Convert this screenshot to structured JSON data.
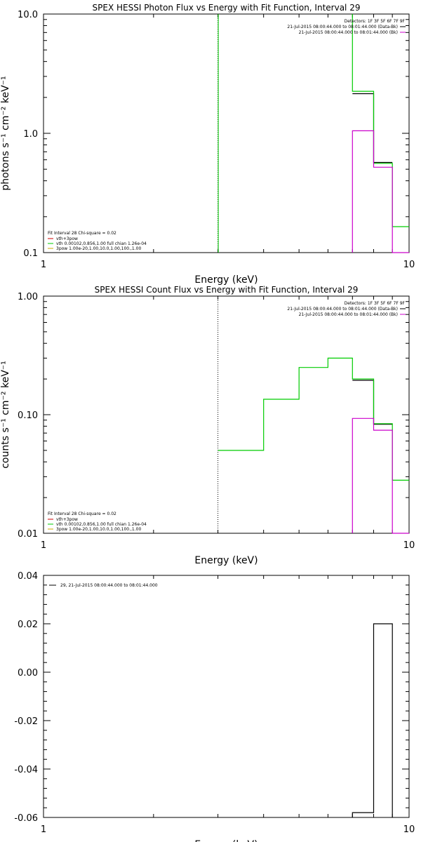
{
  "chart_data": [
    {
      "type": "line",
      "title": "SPEX HESSI Photon Flux vs Energy with Fit Function, Interval 29",
      "xlabel": "Energy (keV)",
      "ylabel": "photons s⁻¹ cm⁻² keV⁻¹",
      "xscale": "log",
      "yscale": "log",
      "xlim": [
        1,
        10
      ],
      "ylim": [
        0.1,
        10
      ],
      "xticks": [
        "1",
        "10"
      ],
      "yticks": [
        "0.1",
        "1.0",
        "10.0"
      ],
      "vline_x": 3,
      "legend": {
        "placement": "top-right",
        "header": "Detectors: 1F 3F 5F 6F 7F 9F",
        "lines": [
          "21-Jul-2015 08:00:44.000 to 08:01:44.000 (Data-Bk)",
          "21-Jul-2015 08:00:44.000 to 08:01:44.000 (Bk)"
        ]
      },
      "fit_legend": {
        "placement": "bottom-left",
        "header": "Fit Interval 28   Chi-square = 0.02",
        "lines": [
          "vth+3pow",
          "vth 0.00102,0.856,1.00  full chian 1.26e-04",
          "3pow 1.00e-20,1.00,10.0,1.00,100.,1.00"
        ]
      },
      "series": [
        {
          "color": "#000000",
          "edges": [
            7,
            8,
            9
          ],
          "values": [
            2.15,
            0.57
          ]
        },
        {
          "color": "#00cc00",
          "edges": [
            7,
            8,
            9,
            10
          ],
          "values": [
            2.25,
            0.56,
            0.165
          ],
          "rise_to": 10
        },
        {
          "color": "#cc00cc",
          "edges": [
            7,
            8,
            9,
            10
          ],
          "values": [
            1.05,
            0.52,
            0.1
          ],
          "drop": true
        }
      ]
    },
    {
      "type": "line",
      "title": "SPEX HESSI Count Flux vs Energy with Fit Function, Interval 29",
      "xlabel": "Energy (keV)",
      "ylabel": "counts s⁻¹ cm⁻² keV⁻¹",
      "xscale": "log",
      "yscale": "log",
      "xlim": [
        1,
        10
      ],
      "ylim": [
        0.01,
        1
      ],
      "xticks": [
        "1",
        "10"
      ],
      "yticks": [
        "0.01",
        "0.10",
        "1.00"
      ],
      "vline_x": 3,
      "legend": {
        "placement": "top-right",
        "header": "Detectors: 1F 3F 5F 6F 7F 9F",
        "lines": [
          "21-Jul-2015 08:00:44.000 to 08:01:44.000 (Data-Bk)",
          "21-Jul-2015 08:00:44.000 to 08:01:44.000 (Bk)"
        ]
      },
      "fit_legend": {
        "placement": "bottom-left",
        "header": "Fit Interval 28   Chi-square = 0.02",
        "lines": [
          "vth+3pow",
          "vth 0.00102,0.856,1.00  full chian 1.26e-04",
          "3pow 1.00e-20,1.00,10.0,1.00,100.,1.00"
        ]
      },
      "series": [
        {
          "color": "#000000",
          "edges": [
            7,
            8,
            9
          ],
          "values": [
            0.195,
            0.083
          ]
        },
        {
          "color": "#00cc00",
          "edges": [
            3,
            4,
            5,
            6,
            7,
            8,
            9,
            10
          ],
          "values": [
            0.05,
            0.135,
            0.25,
            0.3,
            0.2,
            0.084,
            0.028
          ]
        },
        {
          "color": "#cc00cc",
          "edges": [
            7,
            8,
            9,
            10
          ],
          "values": [
            0.093,
            0.074,
            0.01
          ],
          "drop": true
        }
      ]
    },
    {
      "type": "line",
      "title": "",
      "xlabel": "Energy (keV)",
      "ylabel": "",
      "xscale": "log",
      "yscale": "linear",
      "xlim": [
        1,
        10
      ],
      "ylim": [
        -0.06,
        0.04
      ],
      "xticks": [
        "1",
        "10"
      ],
      "yticks": [
        "-0.06",
        "-0.04",
        "-0.02",
        "0.00",
        "0.02",
        "0.04"
      ],
      "legend": {
        "placement": "top-left",
        "lines": [
          "29, 21-Jul-2015 08:00:44.000 to 08:01:44.000"
        ]
      },
      "series": [
        {
          "color": "#000000",
          "edges": [
            7,
            8,
            9
          ],
          "values": [
            -0.058,
            0.02
          ],
          "drop": true
        }
      ]
    }
  ]
}
